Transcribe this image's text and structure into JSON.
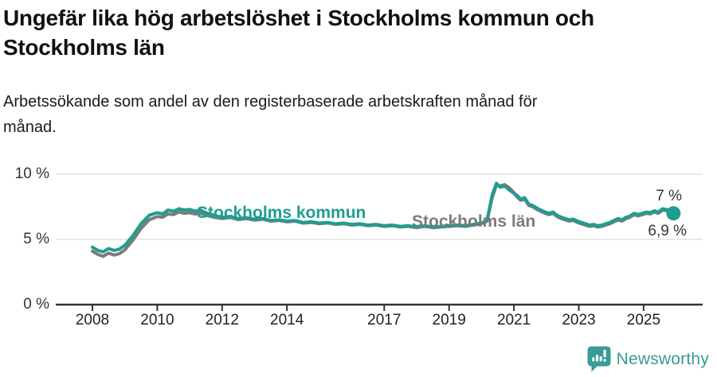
{
  "header": {
    "title_lines": [
      "Ungefär lika hög arbetslöshet i Stockholms kommun och",
      "Stockholms län"
    ],
    "subtitle_lines": [
      "Arbetssökande som andel av den registerbaserade arbetskraften månad för",
      "månad."
    ]
  },
  "chart_data": {
    "type": "line",
    "title": "Ungefär lika hög arbetslöshet i Stockholms kommun och Stockholms län",
    "subtitle": "Arbetssökande som andel av den registerbaserade arbetskraften månad för månad.",
    "ylim": [
      0,
      10
    ],
    "xlim": [
      2008,
      2025.92
    ],
    "grid": true,
    "legend": "inline-labels",
    "yticks": [
      {
        "value": 0,
        "label": "0 %"
      },
      {
        "value": 5,
        "label": "5 %"
      },
      {
        "value": 10,
        "label": "10 %"
      }
    ],
    "xticks": [
      {
        "value": 2008,
        "label": "2008"
      },
      {
        "value": 2010,
        "label": "2010"
      },
      {
        "value": 2012,
        "label": "2012"
      },
      {
        "value": 2014,
        "label": "2014"
      },
      {
        "value": 2017,
        "label": "2017"
      },
      {
        "value": 2019,
        "label": "2019"
      },
      {
        "value": 2021,
        "label": "2021"
      },
      {
        "value": 2023,
        "label": "2023"
      },
      {
        "value": 2025,
        "label": "2025"
      }
    ],
    "colors": {
      "kommun_line": "#1f9d90",
      "lan_line": "#7b7b7b",
      "gridline": "#dcdcdc",
      "axis": "#333333",
      "end_label_text": "#333333",
      "brand_teal": "#3a9a97"
    },
    "series": [
      {
        "name": "Stockholms län",
        "color": "#7b7b7b",
        "end_label": "6,9 %",
        "end_value": 6.9,
        "end_dot": false,
        "points": [
          [
            2008.0,
            4.1
          ],
          [
            2008.17,
            3.85
          ],
          [
            2008.33,
            3.7
          ],
          [
            2008.5,
            3.95
          ],
          [
            2008.67,
            3.8
          ],
          [
            2008.83,
            3.9
          ],
          [
            2009.0,
            4.2
          ],
          [
            2009.25,
            4.95
          ],
          [
            2009.5,
            5.85
          ],
          [
            2009.75,
            6.5
          ],
          [
            2010.0,
            6.75
          ],
          [
            2010.17,
            6.7
          ],
          [
            2010.33,
            6.95
          ],
          [
            2010.5,
            6.9
          ],
          [
            2010.67,
            7.1
          ],
          [
            2010.83,
            7.0
          ],
          [
            2011.0,
            7.05
          ],
          [
            2011.17,
            6.95
          ],
          [
            2011.33,
            7.0
          ],
          [
            2011.5,
            6.85
          ],
          [
            2011.75,
            6.7
          ],
          [
            2012.0,
            6.6
          ],
          [
            2012.25,
            6.68
          ],
          [
            2012.5,
            6.52
          ],
          [
            2012.75,
            6.6
          ],
          [
            2013.0,
            6.48
          ],
          [
            2013.25,
            6.55
          ],
          [
            2013.5,
            6.4
          ],
          [
            2013.75,
            6.45
          ],
          [
            2014.0,
            6.35
          ],
          [
            2014.25,
            6.4
          ],
          [
            2014.5,
            6.25
          ],
          [
            2014.75,
            6.3
          ],
          [
            2015.0,
            6.2
          ],
          [
            2015.25,
            6.26
          ],
          [
            2015.5,
            6.15
          ],
          [
            2015.75,
            6.2
          ],
          [
            2016.0,
            6.1
          ],
          [
            2016.25,
            6.15
          ],
          [
            2016.5,
            6.05
          ],
          [
            2016.75,
            6.1
          ],
          [
            2017.0,
            6.0
          ],
          [
            2017.25,
            6.05
          ],
          [
            2017.5,
            5.95
          ],
          [
            2017.75,
            6.0
          ],
          [
            2018.0,
            5.9
          ],
          [
            2018.25,
            6.0
          ],
          [
            2018.5,
            5.9
          ],
          [
            2018.75,
            5.95
          ],
          [
            2019.0,
            6.0
          ],
          [
            2019.25,
            6.05
          ],
          [
            2019.5,
            6.0
          ],
          [
            2019.75,
            6.1
          ],
          [
            2020.0,
            6.2
          ],
          [
            2020.17,
            6.4
          ],
          [
            2020.33,
            8.2
          ],
          [
            2020.46,
            9.15
          ],
          [
            2020.58,
            9.1
          ],
          [
            2020.71,
            9.2
          ],
          [
            2020.83,
            9.0
          ],
          [
            2020.96,
            8.7
          ],
          [
            2021.08,
            8.3
          ],
          [
            2021.21,
            8.0
          ],
          [
            2021.33,
            8.1
          ],
          [
            2021.46,
            7.6
          ],
          [
            2021.58,
            7.5
          ],
          [
            2021.71,
            7.3
          ],
          [
            2021.83,
            7.15
          ],
          [
            2021.96,
            7.0
          ],
          [
            2022.08,
            6.9
          ],
          [
            2022.21,
            7.0
          ],
          [
            2022.33,
            6.75
          ],
          [
            2022.46,
            6.6
          ],
          [
            2022.58,
            6.5
          ],
          [
            2022.71,
            6.4
          ],
          [
            2022.83,
            6.45
          ],
          [
            2022.96,
            6.3
          ],
          [
            2023.08,
            6.2
          ],
          [
            2023.21,
            6.1
          ],
          [
            2023.33,
            6.0
          ],
          [
            2023.46,
            6.05
          ],
          [
            2023.58,
            5.95
          ],
          [
            2023.71,
            6.0
          ],
          [
            2023.83,
            6.1
          ],
          [
            2023.96,
            6.2
          ],
          [
            2024.08,
            6.35
          ],
          [
            2024.21,
            6.5
          ],
          [
            2024.33,
            6.4
          ],
          [
            2024.46,
            6.6
          ],
          [
            2024.58,
            6.7
          ],
          [
            2024.71,
            6.9
          ],
          [
            2024.83,
            6.8
          ],
          [
            2024.96,
            6.9
          ],
          [
            2025.08,
            7.0
          ],
          [
            2025.21,
            6.95
          ],
          [
            2025.33,
            7.1
          ],
          [
            2025.46,
            7.0
          ],
          [
            2025.58,
            7.25
          ],
          [
            2025.71,
            7.2
          ],
          [
            2025.83,
            7.0
          ],
          [
            2025.92,
            6.9
          ]
        ]
      },
      {
        "name": "Stockholms kommun",
        "color": "#1f9d90",
        "end_label": "7 %",
        "end_value": 7.0,
        "end_dot": true,
        "points": [
          [
            2008.0,
            4.4
          ],
          [
            2008.17,
            4.15
          ],
          [
            2008.33,
            4.05
          ],
          [
            2008.5,
            4.3
          ],
          [
            2008.67,
            4.15
          ],
          [
            2008.83,
            4.25
          ],
          [
            2009.0,
            4.55
          ],
          [
            2009.25,
            5.3
          ],
          [
            2009.5,
            6.2
          ],
          [
            2009.75,
            6.85
          ],
          [
            2010.0,
            7.05
          ],
          [
            2010.17,
            6.95
          ],
          [
            2010.33,
            7.25
          ],
          [
            2010.5,
            7.15
          ],
          [
            2010.67,
            7.35
          ],
          [
            2010.83,
            7.25
          ],
          [
            2011.0,
            7.3
          ],
          [
            2011.17,
            7.15
          ],
          [
            2011.33,
            7.25
          ],
          [
            2011.5,
            7.05
          ],
          [
            2011.75,
            6.85
          ],
          [
            2012.0,
            6.7
          ],
          [
            2012.25,
            6.75
          ],
          [
            2012.5,
            6.6
          ],
          [
            2012.75,
            6.65
          ],
          [
            2013.0,
            6.55
          ],
          [
            2013.25,
            6.6
          ],
          [
            2013.5,
            6.45
          ],
          [
            2013.75,
            6.5
          ],
          [
            2014.0,
            6.4
          ],
          [
            2014.25,
            6.45
          ],
          [
            2014.5,
            6.3
          ],
          [
            2014.75,
            6.35
          ],
          [
            2015.0,
            6.25
          ],
          [
            2015.25,
            6.3
          ],
          [
            2015.5,
            6.2
          ],
          [
            2015.75,
            6.25
          ],
          [
            2016.0,
            6.15
          ],
          [
            2016.25,
            6.2
          ],
          [
            2016.5,
            6.1
          ],
          [
            2016.75,
            6.15
          ],
          [
            2017.0,
            6.05
          ],
          [
            2017.25,
            6.1
          ],
          [
            2017.5,
            6.0
          ],
          [
            2017.75,
            6.05
          ],
          [
            2018.0,
            5.95
          ],
          [
            2018.25,
            6.05
          ],
          [
            2018.5,
            5.95
          ],
          [
            2018.75,
            6.0
          ],
          [
            2019.0,
            6.05
          ],
          [
            2019.25,
            6.1
          ],
          [
            2019.5,
            6.05
          ],
          [
            2019.75,
            6.15
          ],
          [
            2020.0,
            6.25
          ],
          [
            2020.17,
            6.45
          ],
          [
            2020.33,
            8.4
          ],
          [
            2020.46,
            9.3
          ],
          [
            2020.58,
            9.0
          ],
          [
            2020.71,
            9.1
          ],
          [
            2020.83,
            8.85
          ],
          [
            2020.96,
            8.6
          ],
          [
            2021.08,
            8.4
          ],
          [
            2021.21,
            8.1
          ],
          [
            2021.33,
            8.2
          ],
          [
            2021.46,
            7.7
          ],
          [
            2021.58,
            7.6
          ],
          [
            2021.71,
            7.4
          ],
          [
            2021.83,
            7.25
          ],
          [
            2021.96,
            7.1
          ],
          [
            2022.08,
            7.0
          ],
          [
            2022.21,
            7.1
          ],
          [
            2022.33,
            6.85
          ],
          [
            2022.46,
            6.7
          ],
          [
            2022.58,
            6.6
          ],
          [
            2022.71,
            6.5
          ],
          [
            2022.83,
            6.55
          ],
          [
            2022.96,
            6.4
          ],
          [
            2023.08,
            6.3
          ],
          [
            2023.21,
            6.2
          ],
          [
            2023.33,
            6.1
          ],
          [
            2023.46,
            6.15
          ],
          [
            2023.58,
            6.05
          ],
          [
            2023.71,
            6.1
          ],
          [
            2023.83,
            6.2
          ],
          [
            2023.96,
            6.3
          ],
          [
            2024.08,
            6.45
          ],
          [
            2024.21,
            6.6
          ],
          [
            2024.33,
            6.5
          ],
          [
            2024.46,
            6.7
          ],
          [
            2024.58,
            6.8
          ],
          [
            2024.71,
            7.0
          ],
          [
            2024.83,
            6.9
          ],
          [
            2024.96,
            7.0
          ],
          [
            2025.08,
            7.1
          ],
          [
            2025.21,
            7.05
          ],
          [
            2025.33,
            7.2
          ],
          [
            2025.46,
            7.1
          ],
          [
            2025.58,
            7.35
          ],
          [
            2025.71,
            7.3
          ],
          [
            2025.83,
            7.1
          ],
          [
            2025.92,
            7.0
          ]
        ]
      }
    ]
  },
  "footer": {
    "brand": "Newsworthy"
  }
}
